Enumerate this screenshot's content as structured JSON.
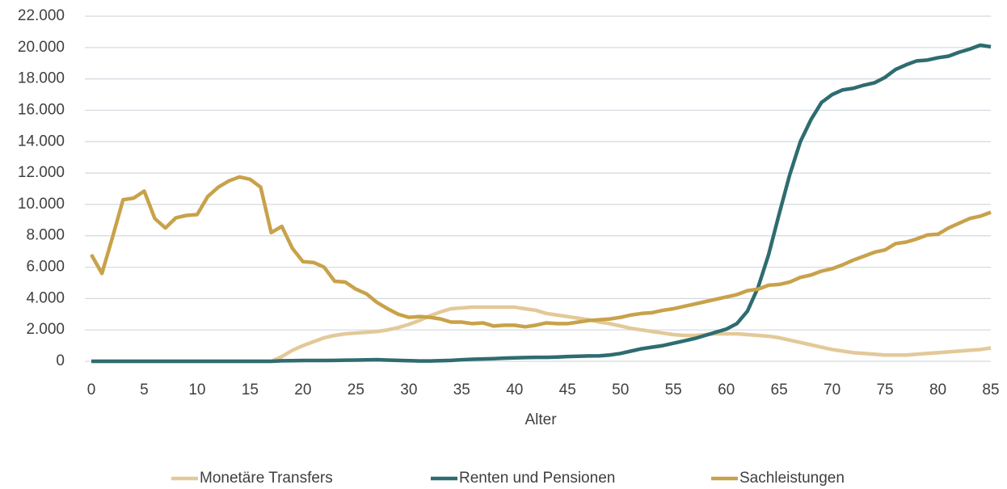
{
  "chart_data": {
    "type": "line",
    "xlabel": "Alter",
    "x": [
      0,
      1,
      2,
      3,
      4,
      5,
      6,
      7,
      8,
      9,
      10,
      11,
      12,
      13,
      14,
      15,
      16,
      17,
      18,
      19,
      20,
      21,
      22,
      23,
      24,
      25,
      26,
      27,
      28,
      29,
      30,
      31,
      32,
      33,
      34,
      35,
      36,
      37,
      38,
      39,
      40,
      41,
      42,
      43,
      44,
      45,
      46,
      47,
      48,
      49,
      50,
      51,
      52,
      53,
      54,
      55,
      56,
      57,
      58,
      59,
      60,
      61,
      62,
      63,
      64,
      65,
      66,
      67,
      68,
      69,
      70,
      71,
      72,
      73,
      74,
      75,
      76,
      77,
      78,
      79,
      80,
      81,
      82,
      83,
      84,
      85
    ],
    "xlim": [
      0,
      85
    ],
    "xticks": [
      0,
      5,
      10,
      15,
      20,
      25,
      30,
      35,
      40,
      45,
      50,
      55,
      60,
      65,
      70,
      75,
      80,
      85
    ],
    "ylim": [
      0,
      22000
    ],
    "yticks": [
      0,
      {
        "value": 2000,
        "label": "2.000"
      },
      {
        "value": 4000,
        "label": "4.000"
      },
      {
        "value": 6000,
        "label": "6.000"
      },
      {
        "value": 8000,
        "label": "8.000"
      },
      {
        "value": 10000,
        "label": "10.000"
      },
      {
        "value": 12000,
        "label": "12.000"
      },
      {
        "value": 14000,
        "label": "14.000"
      },
      {
        "value": 16000,
        "label": "16.000"
      },
      {
        "value": 18000,
        "label": "18.000"
      },
      {
        "value": 20000,
        "label": "20.000"
      },
      {
        "value": 22000,
        "label": "22.000"
      }
    ],
    "grid": true,
    "legend": "bottom",
    "series": [
      {
        "name": "Monetäre Transfers",
        "color": "#e3c999",
        "values": [
          0,
          0,
          0,
          0,
          0,
          0,
          0,
          0,
          0,
          0,
          0,
          0,
          0,
          0,
          0,
          0,
          0,
          0,
          300,
          700,
          1000,
          1250,
          1500,
          1650,
          1750,
          1800,
          1850,
          1900,
          2000,
          2150,
          2350,
          2600,
          2900,
          3150,
          3350,
          3400,
          3450,
          3450,
          3450,
          3450,
          3450,
          3350,
          3250,
          3050,
          2950,
          2850,
          2750,
          2650,
          2500,
          2400,
          2250,
          2100,
          2000,
          1900,
          1800,
          1700,
          1650,
          1650,
          1700,
          1750,
          1750,
          1750,
          1700,
          1650,
          1600,
          1500,
          1350,
          1200,
          1050,
          900,
          750,
          650,
          550,
          500,
          450,
          400,
          400,
          400,
          450,
          500,
          550,
          600,
          650,
          700,
          750,
          850
        ]
      },
      {
        "name": "Renten und Pensionen",
        "color": "#2e6c70",
        "values": [
          0,
          0,
          0,
          0,
          0,
          0,
          0,
          0,
          0,
          0,
          0,
          0,
          0,
          0,
          0,
          0,
          0,
          0,
          30,
          40,
          50,
          50,
          50,
          60,
          70,
          80,
          90,
          100,
          80,
          60,
          40,
          20,
          20,
          40,
          60,
          100,
          130,
          150,
          170,
          200,
          220,
          240,
          250,
          250,
          270,
          300,
          320,
          340,
          350,
          400,
          500,
          650,
          800,
          900,
          1000,
          1150,
          1300,
          1450,
          1650,
          1850,
          2050,
          2400,
          3200,
          4700,
          6800,
          9400,
          11900,
          14000,
          15400,
          16500,
          17000,
          17300,
          17400,
          17600,
          17750,
          18100,
          18600,
          18900,
          19150,
          19200,
          19350,
          19450,
          19700,
          19900,
          20150,
          20050
        ]
      },
      {
        "name": "Sachleistungen",
        "color": "#c8a24a",
        "values": [
          6800,
          5600,
          7900,
          10300,
          10400,
          10850,
          9100,
          8500,
          9150,
          9300,
          9350,
          10500,
          11100,
          11500,
          11750,
          11600,
          11100,
          8200,
          8600,
          7200,
          6350,
          6300,
          6000,
          5100,
          5050,
          4600,
          4300,
          3750,
          3350,
          3000,
          2800,
          2850,
          2800,
          2700,
          2500,
          2500,
          2400,
          2450,
          2250,
          2300,
          2300,
          2200,
          2300,
          2450,
          2400,
          2400,
          2500,
          2600,
          2650,
          2700,
          2800,
          2950,
          3050,
          3100,
          3250,
          3350,
          3500,
          3650,
          3800,
          3950,
          4100,
          4250,
          4500,
          4600,
          4850,
          4900,
          5050,
          5350,
          5500,
          5750,
          5900,
          6150,
          6450,
          6700,
          6950,
          7100,
          7500,
          7600,
          7800,
          8050,
          8100,
          8500,
          8800,
          9100,
          9250,
          9500
        ]
      }
    ]
  }
}
